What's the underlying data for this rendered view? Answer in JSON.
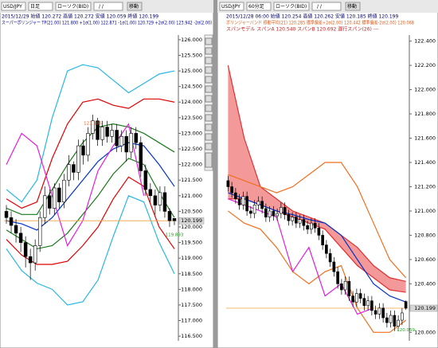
{
  "panels": [
    {
      "symbol": "USD/JPY",
      "timeframe": "日足",
      "price_type": "ローソク(BID)",
      "date_field": "/ /",
      "button": "移動",
      "info": "2015/12/29 始値 120.272 高値 120.272 安値 120.059 終値 120.199",
      "indicator": "スーパーボリンジャー TP(21.00) 121.800 +1σ(1.00) 122.871 -1σ(1.00) 120.729 +2σ(2.00) 123.942 -2σ(2.00)"
    },
    {
      "symbol": "USD/JPY",
      "timeframe": "60分足",
      "price_type": "ローソク(BID)",
      "date_field": "/ /",
      "button": "移動",
      "info": "2015/12/28 06:00 始値 120.254 高値 120.262 安値 120.185 終値 120.199",
      "indicator": "ボリンジャーバンド 移動平均(21) 120.285 標準偏差+2σ(2.00) 120.442 標準偏差-2σ(2.00) 120.068",
      "indicator2": "スパンモデル スパンA 120.540 スパンB 120.692 遅行スパン(26) ---"
    }
  ],
  "chart_data": [
    {
      "type": "candlestick",
      "up_color": "#ffffff",
      "down_color": "#000000",
      "last_line_color": "#f0a040",
      "ylim": [
        116.35,
        126.15
      ],
      "yticks": [
        {
          "value": 126,
          "label": "126.000"
        },
        {
          "value": 125.5,
          "label": "125.500"
        },
        {
          "value": 125,
          "label": "125.000"
        },
        {
          "value": 124.5,
          "label": "124.500"
        },
        {
          "value": 124,
          "label": "124.000"
        },
        {
          "value": 123.5,
          "label": "123.500"
        },
        {
          "value": 123,
          "label": "123.000"
        },
        {
          "value": 122.5,
          "label": "122.500"
        },
        {
          "value": 122,
          "label": "122.000"
        },
        {
          "value": 121.5,
          "label": "121.500"
        },
        {
          "value": 121,
          "label": "121.000"
        },
        {
          "value": 120.5,
          "label": "120.500"
        },
        {
          "value": 120,
          "label": "120.000"
        },
        {
          "value": 119.5,
          "label": "119.500"
        },
        {
          "value": 119,
          "label": "119.000"
        },
        {
          "value": 118.5,
          "label": "118.500"
        },
        {
          "value": 118,
          "label": "118.000"
        },
        {
          "value": 117.5,
          "label": "117.500"
        },
        {
          "value": 117,
          "label": "117.000"
        },
        {
          "value": 116.5,
          "label": "116.500"
        }
      ],
      "open": [
        120.5,
        120.3,
        120.05,
        119.8,
        119.5,
        119.05,
        118.85,
        119.4,
        120.3,
        121.0,
        120.6,
        121.25,
        120.8,
        121.5,
        122.0,
        121.75,
        122.6,
        122.3,
        123.0,
        123.4,
        122.8,
        123.2,
        122.9,
        123.1,
        122.6,
        122.9,
        122.4,
        123.0,
        122.7,
        121.8,
        121.2,
        121.0,
        120.7,
        121.1,
        120.5,
        120.272
      ],
      "high": [
        120.7,
        120.5,
        120.25,
        120.0,
        119.7,
        119.3,
        119.6,
        120.5,
        121.3,
        121.2,
        121.4,
        121.4,
        121.7,
        122.3,
        122.1,
        122.8,
        122.8,
        123.2,
        123.6,
        123.5,
        123.4,
        123.4,
        123.3,
        123.3,
        123.1,
        123.1,
        123.2,
        123.2,
        122.9,
        122.0,
        121.4,
        121.2,
        121.3,
        121.3,
        120.6,
        120.272
      ],
      "low": [
        120.1,
        119.8,
        119.5,
        119.2,
        118.7,
        118.3,
        118.6,
        119.2,
        120.1,
        120.4,
        120.4,
        120.6,
        120.6,
        121.3,
        121.5,
        121.5,
        122.0,
        122.1,
        122.8,
        122.6,
        122.6,
        122.7,
        122.7,
        122.4,
        122.4,
        122.1,
        122.2,
        122.5,
        121.6,
        121.0,
        120.8,
        120.4,
        120.5,
        120.3,
        120.0,
        120.059
      ],
      "close": [
        120.3,
        120.05,
        119.8,
        119.5,
        119.05,
        118.85,
        119.4,
        120.3,
        121.0,
        120.6,
        121.25,
        120.8,
        121.5,
        122.0,
        121.75,
        122.6,
        122.3,
        123.0,
        123.4,
        122.8,
        123.2,
        122.9,
        123.1,
        122.6,
        122.9,
        122.4,
        123.0,
        122.7,
        121.8,
        121.2,
        121.0,
        120.7,
        121.1,
        120.5,
        120.2,
        120.199
      ],
      "series": [
        {
          "color": "#29b6e8",
          "values": [
            121.2,
            120.8,
            121.5,
            123.5,
            125.0,
            125.2,
            125.1,
            124.7,
            124.3,
            124.6,
            124.9,
            125.0
          ]
        },
        {
          "color": "#e00000",
          "values": [
            120.9,
            120.6,
            120.8,
            122.2,
            123.3,
            124.0,
            124.1,
            123.9,
            123.8,
            124.1,
            124.1,
            124.0
          ]
        },
        {
          "color": "#1a7a1a",
          "values": [
            120.6,
            120.4,
            120.4,
            121.2,
            122.0,
            122.7,
            123.2,
            123.3,
            123.2,
            123.0,
            122.7,
            122.4
          ]
        },
        {
          "color": "#0033cc",
          "values": [
            120.2,
            120.1,
            119.9,
            120.3,
            120.9,
            121.5,
            122.1,
            122.5,
            122.7,
            122.6,
            122.0,
            121.3
          ]
        },
        {
          "color": "#1a7a1a",
          "values": [
            119.9,
            119.6,
            119.3,
            119.4,
            119.8,
            120.4,
            121.0,
            121.7,
            122.2,
            122.0,
            121.1,
            120.3
          ]
        },
        {
          "color": "#e00000",
          "values": [
            119.6,
            119.1,
            118.8,
            118.8,
            118.9,
            119.4,
            120.0,
            120.9,
            121.6,
            121.3,
            120.0,
            119.3
          ]
        },
        {
          "color": "#29b6e8",
          "values": [
            119.3,
            118.6,
            118.2,
            118.0,
            117.5,
            117.6,
            118.3,
            119.7,
            121.0,
            120.8,
            119.5,
            118.5
          ]
        },
        {
          "color": "#e020e0",
          "values": [
            122.0,
            123.0,
            122.6,
            121.0,
            119.4,
            120.2,
            121.8,
            122.6,
            123.3,
            121.0,
            null,
            null
          ]
        }
      ],
      "high_label": {
        "text": "123.185",
        "value": 123.185,
        "color": "#e06020"
      },
      "low_label": {
        "text": "119.893",
        "value": 119.893,
        "color": "#20a020"
      },
      "last_label": "120.199"
    },
    {
      "type": "candlestick",
      "up_color": "#ffffff",
      "down_color": "#000000",
      "last_line_color": "#f0a040",
      "ylim": [
        119.93,
        122.45
      ],
      "yticks": [
        {
          "value": 122.4,
          "label": "122.400"
        },
        {
          "value": 122.2,
          "label": "122.200"
        },
        {
          "value": 122,
          "label": "122.000"
        },
        {
          "value": 121.8,
          "label": "121.800"
        },
        {
          "value": 121.6,
          "label": "121.600"
        },
        {
          "value": 121.4,
          "label": "121.400"
        },
        {
          "value": 121.2,
          "label": "121.200"
        },
        {
          "value": 121,
          "label": "121.000"
        },
        {
          "value": 120.8,
          "label": "120.800"
        },
        {
          "value": 120.6,
          "label": "120.600"
        },
        {
          "value": 120.4,
          "label": "120.400"
        },
        {
          "value": 120.2,
          "label": "120.200"
        },
        {
          "value": 120,
          "label": "120.000"
        }
      ],
      "open": [
        121.25,
        121.2,
        121.15,
        121.1,
        121.05,
        121.12,
        121.0,
        120.98,
        121.05,
        121.08,
        121.02,
        120.95,
        121.0,
        120.96,
        120.98,
        121.03,
        120.97,
        120.92,
        120.95,
        120.9,
        120.93,
        120.88,
        120.85,
        120.9,
        120.86,
        120.8,
        120.72,
        120.65,
        120.58,
        120.5,
        120.4,
        120.35,
        120.42,
        120.3,
        120.25,
        120.32,
        120.28,
        120.22,
        120.26,
        120.18,
        120.15,
        120.2,
        120.12,
        120.08,
        120.14,
        120.05,
        120.1,
        120.254
      ],
      "high": [
        121.29,
        121.24,
        121.19,
        121.14,
        121.16,
        121.16,
        121.04,
        121.09,
        121.12,
        121.12,
        121.06,
        121.04,
        121.04,
        121.02,
        121.07,
        121.07,
        121.01,
        120.99,
        120.99,
        120.97,
        120.97,
        120.92,
        120.94,
        120.94,
        120.9,
        120.84,
        120.76,
        120.69,
        120.62,
        120.54,
        120.44,
        120.46,
        120.46,
        120.34,
        120.36,
        120.36,
        120.32,
        120.3,
        120.3,
        120.22,
        120.24,
        120.24,
        120.16,
        120.18,
        120.18,
        120.14,
        120.2,
        120.262
      ],
      "low": [
        121.16,
        121.11,
        121.06,
        121.01,
        121.01,
        120.96,
        120.94,
        120.94,
        121.01,
        120.98,
        120.91,
        120.91,
        120.92,
        120.92,
        120.94,
        120.93,
        120.88,
        120.88,
        120.86,
        120.86,
        120.84,
        120.81,
        120.81,
        120.82,
        120.76,
        120.68,
        120.61,
        120.54,
        120.46,
        120.36,
        120.31,
        120.31,
        120.26,
        120.21,
        120.21,
        120.24,
        120.18,
        120.18,
        120.14,
        120.11,
        120.11,
        120.08,
        120.04,
        120.04,
        120.01,
        120.01,
        120.06,
        120.185
      ],
      "close": [
        121.2,
        121.15,
        121.1,
        121.05,
        121.12,
        121.0,
        120.98,
        121.05,
        121.08,
        121.02,
        120.95,
        121.0,
        120.96,
        120.98,
        121.03,
        120.97,
        120.92,
        120.95,
        120.9,
        120.93,
        120.88,
        120.85,
        120.9,
        120.86,
        120.8,
        120.72,
        120.65,
        120.58,
        120.5,
        120.4,
        120.35,
        120.42,
        120.3,
        120.25,
        120.32,
        120.28,
        120.22,
        120.26,
        120.18,
        120.15,
        120.2,
        120.12,
        120.08,
        120.14,
        120.05,
        120.1,
        120.16,
        120.199
      ],
      "cloud": {
        "color": "#f08080",
        "a": [
          122.2,
          121.6,
          121.2,
          121.1,
          121.0,
          120.95,
          120.9,
          120.8,
          120.7,
          120.55,
          120.45,
          120.42
        ],
        "b": [
          121.1,
          121.1,
          121.05,
          121.0,
          120.95,
          120.9,
          120.85,
          120.7,
          120.55,
          120.45,
          120.35,
          120.33
        ],
        "line_color": "#e03030"
      },
      "series": [
        {
          "color": "#f07020",
          "values": [
            121.3,
            121.25,
            121.2,
            121.15,
            121.2,
            121.3,
            121.4,
            121.4,
            121.2,
            120.9,
            120.6,
            120.45
          ]
        },
        {
          "color": "#f07020",
          "values": [
            121.0,
            120.9,
            120.85,
            120.7,
            120.5,
            120.4,
            120.5,
            120.55,
            120.2,
            120.0,
            120.0,
            120.1
          ]
        },
        {
          "color": "#0033cc",
          "values": [
            121.15,
            121.1,
            121.05,
            121.0,
            120.97,
            120.93,
            120.9,
            120.8,
            120.6,
            120.4,
            120.3,
            120.25
          ]
        },
        {
          "color": "#e020e0",
          "values": [
            121.1,
            121.05,
            121.0,
            120.95,
            120.5,
            120.7,
            120.3,
            120.4,
            120.15,
            120.2,
            null,
            null
          ]
        }
      ],
      "low_label": {
        "text": "120.059",
        "value": 120.059,
        "color": "#20a020"
      },
      "last_label": "120.199"
    }
  ]
}
